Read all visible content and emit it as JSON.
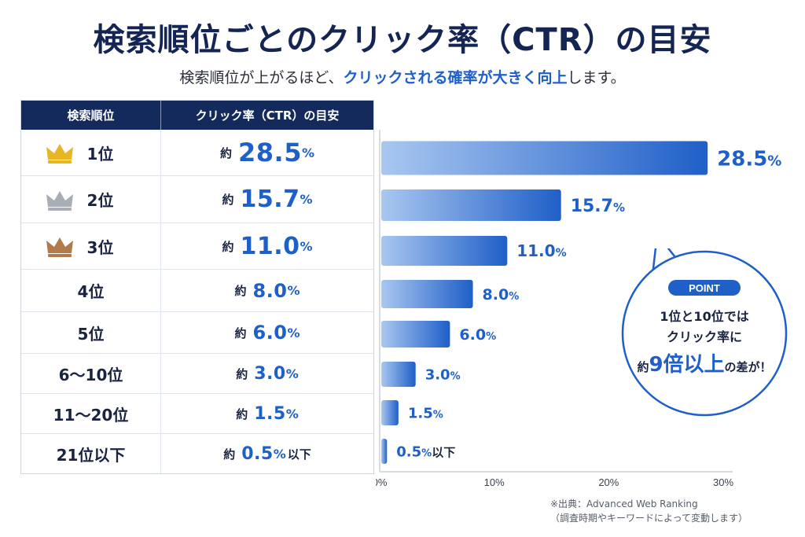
{
  "title": "検索順位ごとのクリック率（CTR）の目安",
  "subtitle": {
    "pre": "検索順位が上がるほど、",
    "highlight": "クリックされる確率が大きく向上",
    "post": "します。"
  },
  "table": {
    "header_rank": "検索順位",
    "header_ctr": "クリック率（CTR）の目安",
    "value_prefix": "約",
    "unit": "%",
    "rows": [
      {
        "rank": "1位",
        "value": "28.5",
        "suffix": ""
      },
      {
        "rank": "2位",
        "value": "15.7",
        "suffix": ""
      },
      {
        "rank": "3位",
        "value": "11.0",
        "suffix": ""
      },
      {
        "rank": "4位",
        "value": "8.0",
        "suffix": ""
      },
      {
        "rank": "5位",
        "value": "6.0",
        "suffix": ""
      },
      {
        "rank": "6～10位",
        "value": "3.0",
        "suffix": ""
      },
      {
        "rank": "11～20位",
        "value": "1.5",
        "suffix": ""
      },
      {
        "rank": "21位以下",
        "value": "0.5",
        "suffix": "以下"
      }
    ]
  },
  "colors": {
    "gold": "#e9b623",
    "silver": "#a9aeb6",
    "bronze": "#b37a4b",
    "bar_dark": "#1f5fc8",
    "bar_light": "#a9c7f0",
    "accent": "#1f5fc8",
    "navy": "#142453"
  },
  "icons": [
    "gold-crown-icon",
    "silver-crown-icon",
    "bronze-crown-icon"
  ],
  "chart_data": {
    "type": "bar",
    "orientation": "horizontal",
    "categories": [
      "1位",
      "2位",
      "3位",
      "4位",
      "5位",
      "6～10位",
      "11～20位",
      "21位以下"
    ],
    "values": [
      28.5,
      15.7,
      11.0,
      8.0,
      6.0,
      3.0,
      1.5,
      0.5
    ],
    "data_labels": [
      "28.5",
      "15.7",
      "11.0",
      "8.0",
      "6.0",
      "3.0",
      "1.5",
      "0.5"
    ],
    "data_label_unit": "%",
    "data_label_suffixes": [
      "",
      "",
      "",
      "",
      "",
      "",
      "",
      "以下"
    ],
    "xlim": [
      0,
      30
    ],
    "xticks": [
      0,
      10,
      20,
      30
    ],
    "xtick_labels": [
      "0%",
      "10%",
      "20%",
      "30%"
    ],
    "grid": false
  },
  "callout": {
    "badge": "POINT",
    "line1": "1位と10位では",
    "line2": "クリック率に",
    "line3_pre": "約",
    "line3_big": "9倍以上",
    "line3_post": "の差が！"
  },
  "source_note": {
    "line1": "※出典：Advanced Web Ranking",
    "line2": "（調査時期やキーワードによって変動します）"
  }
}
